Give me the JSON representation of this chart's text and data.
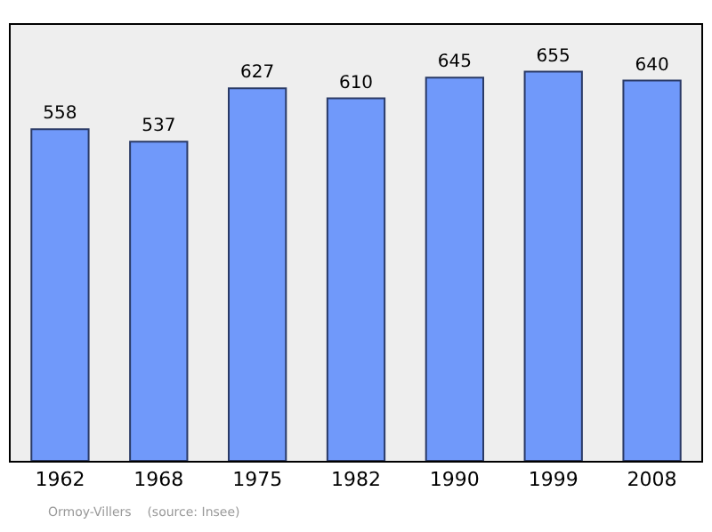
{
  "chart_data": {
    "type": "bar",
    "categories": [
      "1962",
      "1968",
      "1975",
      "1982",
      "1990",
      "1999",
      "2008"
    ],
    "values": [
      558,
      537,
      627,
      610,
      645,
      655,
      640
    ],
    "color": "#7099fa",
    "data_labels": true,
    "grid": false,
    "legend": false,
    "annotations": [
      "Ormoy-Villers    (source: Insee)"
    ]
  }
}
